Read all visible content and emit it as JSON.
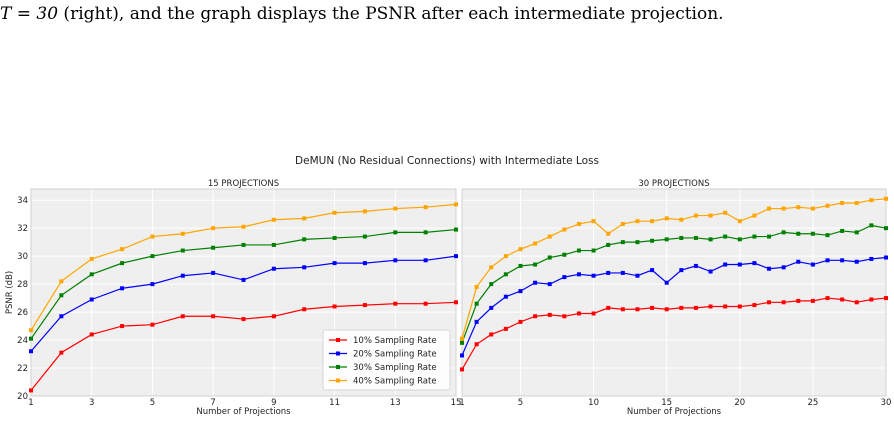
{
  "caption": {
    "math": "T = 30",
    "text": " (right), and the graph displays the PSNR after each intermediate projection."
  },
  "figure": {
    "suptitle": "DeMUN (No Residual Connections) with Intermediate Loss"
  },
  "colors": {
    "10%": "#ff0000",
    "20%": "#0000ff",
    "30%": "#008000",
    "40%": "#ffa500",
    "panel_bg": "#efefef",
    "grid": "#ffffff"
  },
  "chart_data": [
    {
      "type": "line",
      "title": "15 PROJECTIONS",
      "xlabel": "Number of Projections",
      "ylabel": "PSNR (dB)",
      "xlim": [
        1,
        15
      ],
      "ylim": [
        20,
        34.8
      ],
      "xticks": [
        1,
        3,
        5,
        7,
        9,
        11,
        13,
        15
      ],
      "yticks": [
        20,
        22,
        24,
        26,
        28,
        30,
        32,
        34
      ],
      "grid": true,
      "legend_position": "lower-right",
      "x": [
        1,
        2,
        3,
        4,
        5,
        6,
        7,
        8,
        9,
        10,
        11,
        12,
        13,
        14,
        15
      ],
      "series": [
        {
          "name": "10% Sampling Rate",
          "color_key": "10%",
          "values": [
            20.4,
            23.1,
            24.4,
            25.0,
            25.1,
            25.7,
            25.7,
            25.5,
            25.7,
            26.2,
            26.4,
            26.5,
            26.6,
            26.6,
            26.7
          ]
        },
        {
          "name": "20% Sampling Rate",
          "color_key": "20%",
          "values": [
            23.2,
            25.7,
            26.9,
            27.7,
            28.0,
            28.6,
            28.8,
            28.3,
            29.1,
            29.2,
            29.5,
            29.5,
            29.7,
            29.7,
            30.0
          ]
        },
        {
          "name": "30% Sampling Rate",
          "color_key": "30%",
          "values": [
            24.1,
            27.2,
            28.7,
            29.5,
            30.0,
            30.4,
            30.6,
            30.8,
            30.8,
            31.2,
            31.3,
            31.4,
            31.7,
            31.7,
            31.9
          ]
        },
        {
          "name": "40% Sampling Rate",
          "color_key": "40%",
          "values": [
            24.7,
            28.2,
            29.8,
            30.5,
            31.4,
            31.6,
            32.0,
            32.1,
            32.6,
            32.7,
            33.1,
            33.2,
            33.4,
            33.5,
            33.7
          ]
        }
      ]
    },
    {
      "type": "line",
      "title": "30 PROJECTIONS",
      "xlabel": "Number of Projections",
      "ylabel": "",
      "xlim": [
        1,
        30
      ],
      "ylim": [
        20,
        34.8
      ],
      "xticks": [
        1,
        5,
        10,
        15,
        20,
        25,
        30
      ],
      "grid": true,
      "x": [
        1,
        2,
        3,
        4,
        5,
        6,
        7,
        8,
        9,
        10,
        11,
        12,
        13,
        14,
        15,
        16,
        17,
        18,
        19,
        20,
        21,
        22,
        23,
        24,
        25,
        26,
        27,
        28,
        29,
        30
      ],
      "series": [
        {
          "name": "10% Sampling Rate",
          "color_key": "10%",
          "values": [
            21.9,
            23.7,
            24.4,
            24.8,
            25.3,
            25.7,
            25.8,
            25.7,
            25.9,
            25.9,
            26.3,
            26.2,
            26.2,
            26.3,
            26.2,
            26.3,
            26.3,
            26.4,
            26.4,
            26.4,
            26.5,
            26.7,
            26.7,
            26.8,
            26.8,
            27.0,
            26.9,
            26.7,
            26.9,
            27.0
          ]
        },
        {
          "name": "20% Sampling Rate",
          "color_key": "20%",
          "values": [
            22.9,
            25.3,
            26.3,
            27.1,
            27.5,
            28.1,
            28.0,
            28.5,
            28.7,
            28.6,
            28.8,
            28.8,
            28.6,
            29.0,
            28.1,
            29.0,
            29.3,
            28.9,
            29.4,
            29.4,
            29.5,
            29.1,
            29.2,
            29.6,
            29.4,
            29.7,
            29.7,
            29.6,
            29.8,
            29.9
          ]
        },
        {
          "name": "30% Sampling Rate",
          "color_key": "30%",
          "values": [
            23.8,
            26.6,
            28.0,
            28.7,
            29.3,
            29.4,
            29.9,
            30.1,
            30.4,
            30.4,
            30.8,
            31.0,
            31.0,
            31.1,
            31.2,
            31.3,
            31.3,
            31.2,
            31.4,
            31.2,
            31.4,
            31.4,
            31.7,
            31.6,
            31.6,
            31.5,
            31.8,
            31.7,
            32.2,
            32.0
          ]
        },
        {
          "name": "40% Sampling Rate",
          "color_key": "40%",
          "values": [
            24.1,
            27.8,
            29.2,
            30.0,
            30.5,
            30.9,
            31.4,
            31.9,
            32.3,
            32.5,
            31.6,
            32.3,
            32.5,
            32.5,
            32.7,
            32.6,
            32.9,
            32.9,
            33.1,
            32.5,
            32.9,
            33.4,
            33.4,
            33.5,
            33.4,
            33.6,
            33.8,
            33.8,
            34.0,
            34.1
          ]
        }
      ]
    }
  ]
}
